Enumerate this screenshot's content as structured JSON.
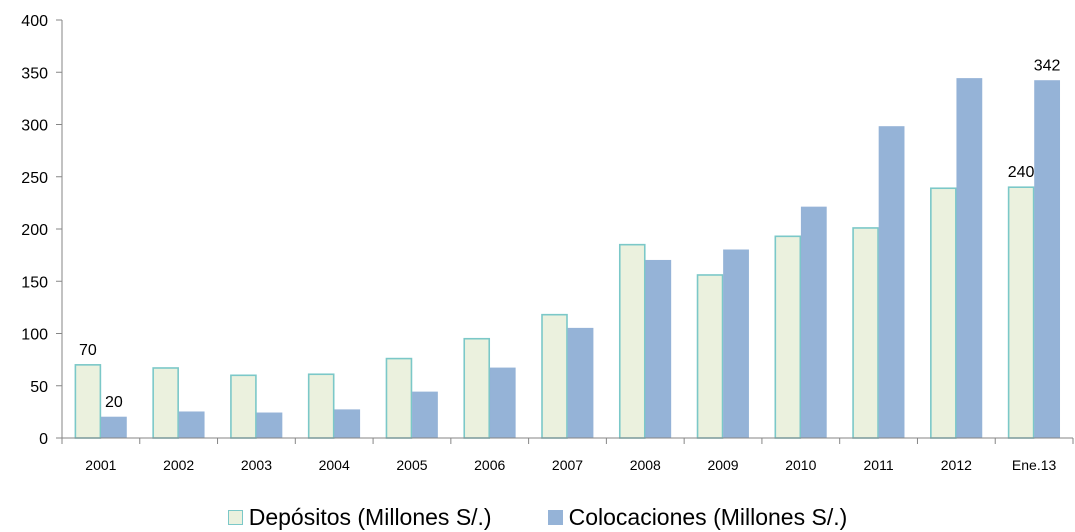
{
  "chart_data": {
    "type": "bar",
    "categories": [
      "2001",
      "2002",
      "2003",
      "2004",
      "2005",
      "2006",
      "2007",
      "2008",
      "2009",
      "2010",
      "2011",
      "2012",
      "Ene.13"
    ],
    "series": [
      {
        "name": "Depósitos (Millones S/.)",
        "values": [
          70,
          67,
          60,
          61,
          76,
          95,
          118,
          185,
          156,
          193,
          201,
          239,
          240
        ],
        "fill": "#EBF1DE",
        "stroke": "#7BC8C8"
      },
      {
        "name": "Colocaciones (Millones S/.)",
        "values": [
          20,
          25,
          24,
          27,
          44,
          67,
          105,
          170,
          180,
          221,
          298,
          344,
          342
        ],
        "fill": "#95B3D7",
        "stroke": "#95B3D7"
      }
    ],
    "data_labels": [
      {
        "series": 0,
        "index": 0,
        "text": "70"
      },
      {
        "series": 1,
        "index": 0,
        "text": "20"
      },
      {
        "series": 0,
        "index": 12,
        "text": "240"
      },
      {
        "series": 1,
        "index": 12,
        "text": "342"
      }
    ],
    "y_ticks": [
      "0",
      "50",
      "100",
      "150",
      "200",
      "250",
      "300",
      "350",
      "400"
    ],
    "ylim": [
      0,
      400
    ],
    "xlabel": "",
    "ylabel": "",
    "title": "",
    "grid": false,
    "legend_position": "bottom"
  }
}
